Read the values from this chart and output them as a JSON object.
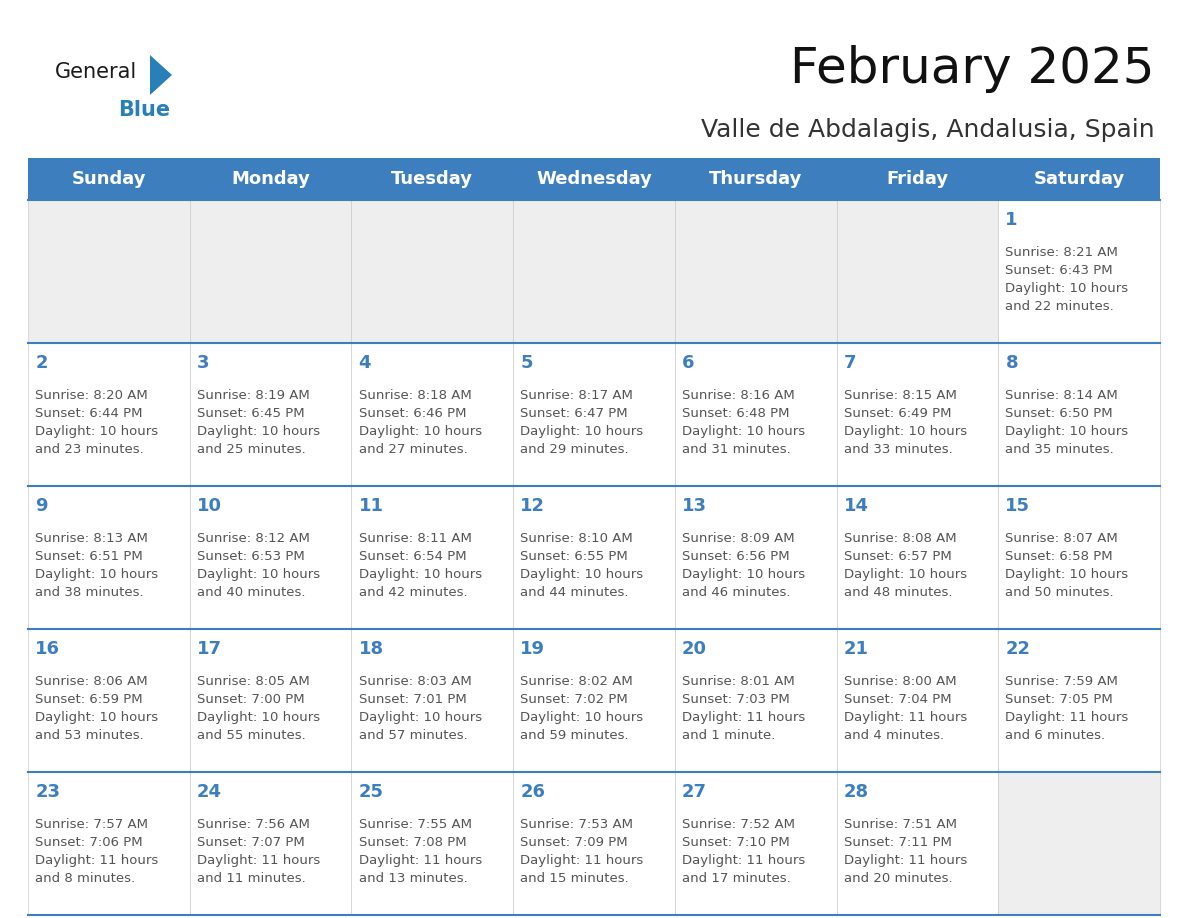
{
  "title": "February 2025",
  "subtitle": "Valle de Abdalagis, Andalusia, Spain",
  "header_color": "#3d7ebf",
  "header_text_color": "#ffffff",
  "cell_bg_color": "#ffffff",
  "empty_cell_bg_color": "#eeeeee",
  "cell_line_color": "#3d7ebf",
  "day_number_color": "#3d7ebf",
  "cell_text_color": "#555555",
  "days_of_week": [
    "Sunday",
    "Monday",
    "Tuesday",
    "Wednesday",
    "Thursday",
    "Friday",
    "Saturday"
  ],
  "weeks": [
    [
      {
        "day": null,
        "text": ""
      },
      {
        "day": null,
        "text": ""
      },
      {
        "day": null,
        "text": ""
      },
      {
        "day": null,
        "text": ""
      },
      {
        "day": null,
        "text": ""
      },
      {
        "day": null,
        "text": ""
      },
      {
        "day": 1,
        "text": "Sunrise: 8:21 AM\nSunset: 6:43 PM\nDaylight: 10 hours\nand 22 minutes."
      }
    ],
    [
      {
        "day": 2,
        "text": "Sunrise: 8:20 AM\nSunset: 6:44 PM\nDaylight: 10 hours\nand 23 minutes."
      },
      {
        "day": 3,
        "text": "Sunrise: 8:19 AM\nSunset: 6:45 PM\nDaylight: 10 hours\nand 25 minutes."
      },
      {
        "day": 4,
        "text": "Sunrise: 8:18 AM\nSunset: 6:46 PM\nDaylight: 10 hours\nand 27 minutes."
      },
      {
        "day": 5,
        "text": "Sunrise: 8:17 AM\nSunset: 6:47 PM\nDaylight: 10 hours\nand 29 minutes."
      },
      {
        "day": 6,
        "text": "Sunrise: 8:16 AM\nSunset: 6:48 PM\nDaylight: 10 hours\nand 31 minutes."
      },
      {
        "day": 7,
        "text": "Sunrise: 8:15 AM\nSunset: 6:49 PM\nDaylight: 10 hours\nand 33 minutes."
      },
      {
        "day": 8,
        "text": "Sunrise: 8:14 AM\nSunset: 6:50 PM\nDaylight: 10 hours\nand 35 minutes."
      }
    ],
    [
      {
        "day": 9,
        "text": "Sunrise: 8:13 AM\nSunset: 6:51 PM\nDaylight: 10 hours\nand 38 minutes."
      },
      {
        "day": 10,
        "text": "Sunrise: 8:12 AM\nSunset: 6:53 PM\nDaylight: 10 hours\nand 40 minutes."
      },
      {
        "day": 11,
        "text": "Sunrise: 8:11 AM\nSunset: 6:54 PM\nDaylight: 10 hours\nand 42 minutes."
      },
      {
        "day": 12,
        "text": "Sunrise: 8:10 AM\nSunset: 6:55 PM\nDaylight: 10 hours\nand 44 minutes."
      },
      {
        "day": 13,
        "text": "Sunrise: 8:09 AM\nSunset: 6:56 PM\nDaylight: 10 hours\nand 46 minutes."
      },
      {
        "day": 14,
        "text": "Sunrise: 8:08 AM\nSunset: 6:57 PM\nDaylight: 10 hours\nand 48 minutes."
      },
      {
        "day": 15,
        "text": "Sunrise: 8:07 AM\nSunset: 6:58 PM\nDaylight: 10 hours\nand 50 minutes."
      }
    ],
    [
      {
        "day": 16,
        "text": "Sunrise: 8:06 AM\nSunset: 6:59 PM\nDaylight: 10 hours\nand 53 minutes."
      },
      {
        "day": 17,
        "text": "Sunrise: 8:05 AM\nSunset: 7:00 PM\nDaylight: 10 hours\nand 55 minutes."
      },
      {
        "day": 18,
        "text": "Sunrise: 8:03 AM\nSunset: 7:01 PM\nDaylight: 10 hours\nand 57 minutes."
      },
      {
        "day": 19,
        "text": "Sunrise: 8:02 AM\nSunset: 7:02 PM\nDaylight: 10 hours\nand 59 minutes."
      },
      {
        "day": 20,
        "text": "Sunrise: 8:01 AM\nSunset: 7:03 PM\nDaylight: 11 hours\nand 1 minute."
      },
      {
        "day": 21,
        "text": "Sunrise: 8:00 AM\nSunset: 7:04 PM\nDaylight: 11 hours\nand 4 minutes."
      },
      {
        "day": 22,
        "text": "Sunrise: 7:59 AM\nSunset: 7:05 PM\nDaylight: 11 hours\nand 6 minutes."
      }
    ],
    [
      {
        "day": 23,
        "text": "Sunrise: 7:57 AM\nSunset: 7:06 PM\nDaylight: 11 hours\nand 8 minutes."
      },
      {
        "day": 24,
        "text": "Sunrise: 7:56 AM\nSunset: 7:07 PM\nDaylight: 11 hours\nand 11 minutes."
      },
      {
        "day": 25,
        "text": "Sunrise: 7:55 AM\nSunset: 7:08 PM\nDaylight: 11 hours\nand 13 minutes."
      },
      {
        "day": 26,
        "text": "Sunrise: 7:53 AM\nSunset: 7:09 PM\nDaylight: 11 hours\nand 15 minutes."
      },
      {
        "day": 27,
        "text": "Sunrise: 7:52 AM\nSunset: 7:10 PM\nDaylight: 11 hours\nand 17 minutes."
      },
      {
        "day": 28,
        "text": "Sunrise: 7:51 AM\nSunset: 7:11 PM\nDaylight: 11 hours\nand 20 minutes."
      },
      {
        "day": null,
        "text": ""
      }
    ]
  ],
  "logo_text_general": "General",
  "logo_text_blue": "Blue",
  "logo_color_general": "#1a1a1a",
  "logo_color_blue": "#2980b9",
  "logo_triangle_color": "#2980b9",
  "title_fontsize": 36,
  "subtitle_fontsize": 18,
  "header_fontsize": 13,
  "day_num_fontsize": 13,
  "cell_text_fontsize": 9.5
}
